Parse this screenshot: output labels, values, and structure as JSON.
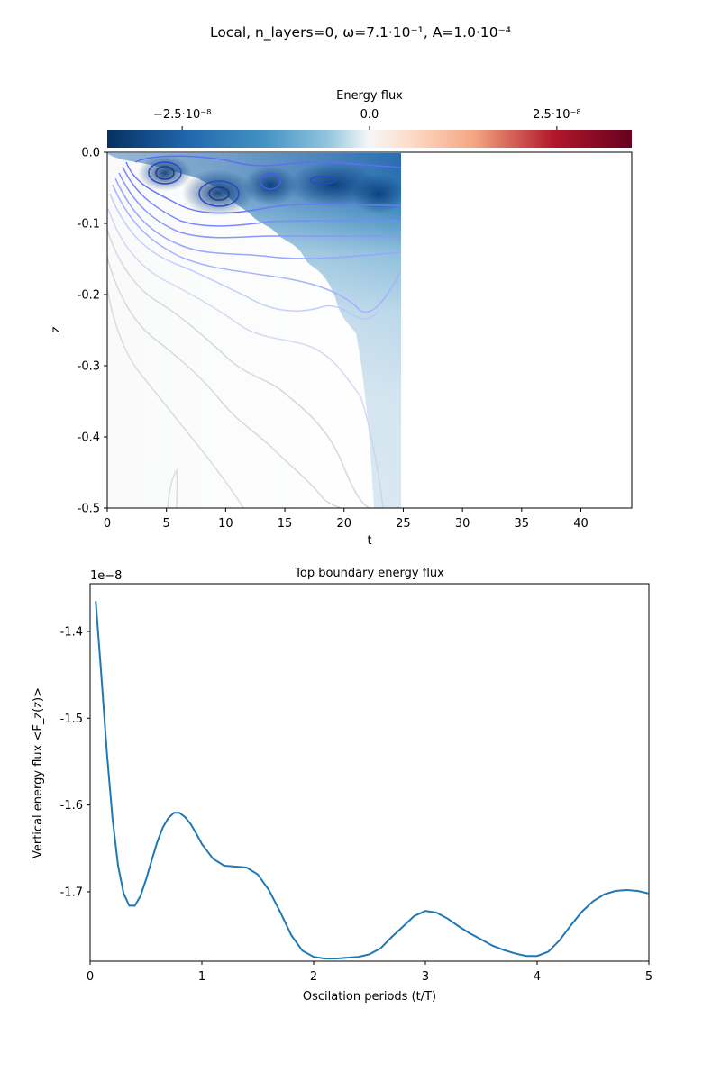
{
  "suptitle": "Local, n_layers=0, ω=7.1·10⁻¹, A=1.0·10⁻⁴",
  "colors": {
    "line": "#1f77b4",
    "flux_neg_strong": "#0a3a73",
    "flux_neg_mid": "#2c77b6",
    "flux_neg_light": "#a9cfe5",
    "flux_zero": "#f5f6f6",
    "flux_pos_light": "#f7c2a6",
    "flux_pos_strong": "#6a0020",
    "contour": "#6f7dff"
  },
  "chart_data": [
    {
      "type": "heatmap",
      "title": "",
      "colorbar_label": "Energy flux",
      "colorbar_ticks": [
        "−2.5·10⁻⁸",
        "0.0",
        "2.5·10⁻⁸"
      ],
      "colorbar_tick_values": [
        -2.5e-08,
        0,
        2.5e-08
      ],
      "colorbar_range": [
        -3.5e-08,
        3.5e-08
      ],
      "colormap": "RdBu_r",
      "xlabel": "t",
      "ylabel": "z",
      "xlim": [
        0,
        44.3
      ],
      "ylim": [
        -0.5,
        0.0
      ],
      "xticks": [
        0,
        5,
        10,
        15,
        20,
        25,
        30,
        35,
        40
      ],
      "yticks": [
        "0.0",
        "-0.1",
        "-0.2",
        "-0.3",
        "-0.4",
        "-0.5"
      ],
      "ytick_values": [
        0.0,
        -0.1,
        -0.2,
        -0.3,
        -0.4,
        -0.5
      ],
      "data_extent_t": [
        0,
        24.8
      ],
      "notes_contours": "contour lines overlaid; strongest negative flux (~ -3.3e-8) near z=-0.03..-0.07 for t=3..24"
    },
    {
      "type": "line",
      "title": "Top boundary energy flux",
      "xlabel": "Oscilation periods (t/T)",
      "ylabel": "Vertical energy flux <F_z(z)>",
      "offset_label": "1e−8",
      "xlim": [
        0,
        5
      ],
      "ylim": [
        -1.78,
        -1.345
      ],
      "xticks": [
        "0",
        "1",
        "2",
        "3",
        "4",
        "5"
      ],
      "xtick_values": [
        0,
        1,
        2,
        3,
        4,
        5
      ],
      "yticks": [
        "-1.4",
        "-1.5",
        "-1.6",
        "-1.7"
      ],
      "ytick_values": [
        -1.4,
        -1.5,
        -1.6,
        -1.7
      ],
      "grid": false,
      "series": [
        {
          "values_scale": "×1e−8",
          "x": [
            0.05,
            0.1,
            0.15,
            0.2,
            0.25,
            0.3,
            0.35,
            0.4,
            0.45,
            0.5,
            0.55,
            0.6,
            0.65,
            0.7,
            0.75,
            0.8,
            0.85,
            0.9,
            0.95,
            1.0,
            1.1,
            1.2,
            1.3,
            1.4,
            1.5,
            1.6,
            1.7,
            1.8,
            1.9,
            2.0,
            2.1,
            2.2,
            2.3,
            2.4,
            2.5,
            2.6,
            2.7,
            2.8,
            2.9,
            3.0,
            3.1,
            3.2,
            3.3,
            3.4,
            3.5,
            3.6,
            3.7,
            3.8,
            3.9,
            4.0,
            4.1,
            4.2,
            4.3,
            4.4,
            4.5,
            4.6,
            4.7,
            4.8,
            4.9,
            5.0
          ],
          "y": [
            -1.365,
            -1.45,
            -1.54,
            -1.615,
            -1.67,
            -1.702,
            -1.716,
            -1.716,
            -1.705,
            -1.686,
            -1.664,
            -1.643,
            -1.626,
            -1.615,
            -1.609,
            -1.609,
            -1.614,
            -1.622,
            -1.633,
            -1.645,
            -1.662,
            -1.67,
            -1.671,
            -1.672,
            -1.68,
            -1.698,
            -1.723,
            -1.75,
            -1.768,
            -1.775,
            -1.777,
            -1.777,
            -1.776,
            -1.775,
            -1.772,
            -1.765,
            -1.752,
            -1.74,
            -1.728,
            -1.722,
            -1.724,
            -1.731,
            -1.74,
            -1.748,
            -1.755,
            -1.762,
            -1.767,
            -1.771,
            -1.774,
            -1.774,
            -1.769,
            -1.756,
            -1.739,
            -1.723,
            -1.711,
            -1.703,
            -1.699,
            -1.698,
            -1.699,
            -1.702
          ]
        }
      ]
    }
  ]
}
